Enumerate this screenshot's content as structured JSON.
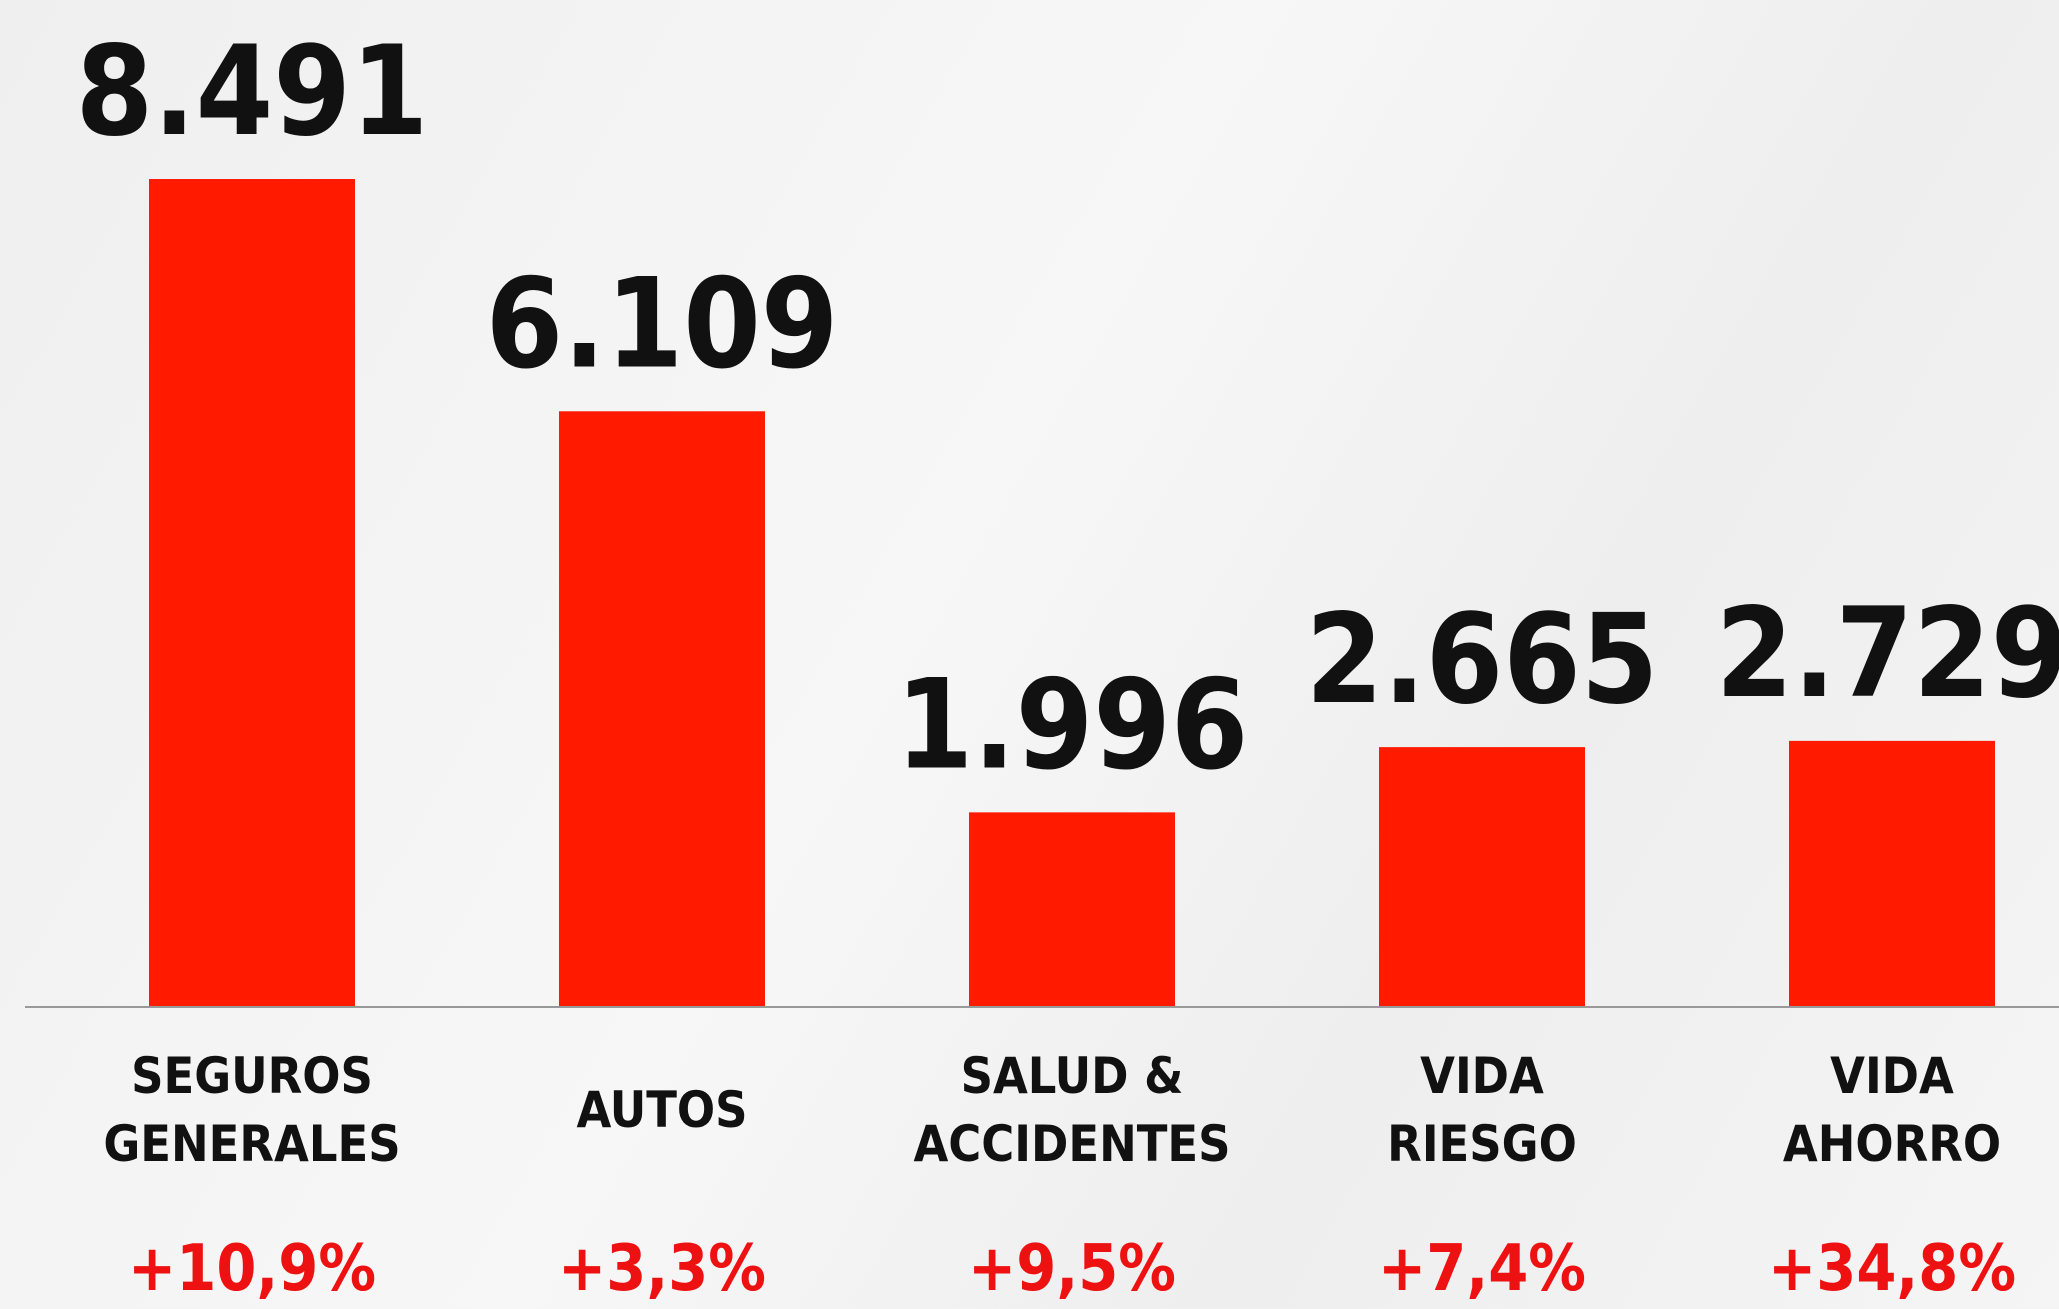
{
  "chart_data": {
    "type": "bar",
    "categories": [
      "SEGUROS\nGENERALES",
      "AUTOS",
      "SALUD &\nACCIDENTES",
      "VIDA\nRIESGO",
      "VIDA\nAHORRO"
    ],
    "values": [
      8491,
      6109,
      1996,
      2665,
      2729
    ],
    "value_labels": [
      "8.491",
      "6.109",
      "1.996",
      "2.665",
      "2.729"
    ],
    "annotations": [
      "+10,9%",
      "+3,3%",
      "+9,5%",
      "+7,4%",
      "+34,8%"
    ],
    "color": "#ff1a00"
  }
}
